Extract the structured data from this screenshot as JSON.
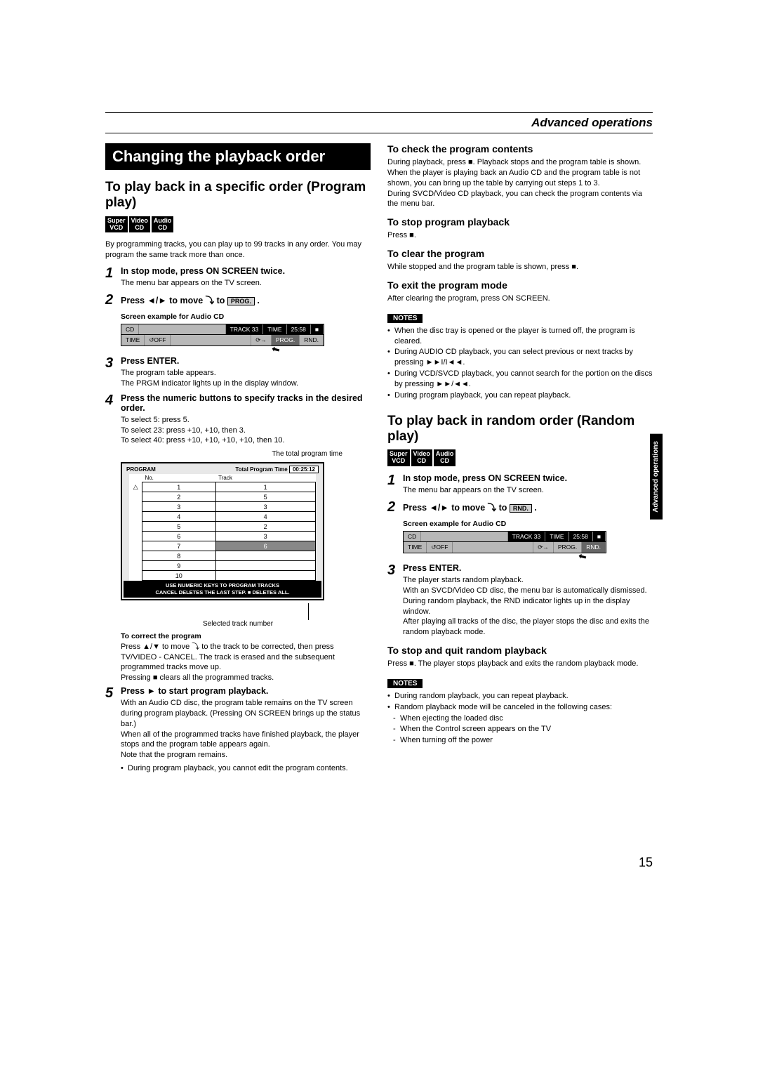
{
  "pageNumber": "15",
  "sectionCategory": "Advanced operations",
  "sideTab": "Advanced operations",
  "leftCol": {
    "mainTitle": "Changing the playback order",
    "subHeading": "To play back in a specific order (Program play)",
    "icons": [
      "Super VCD",
      "Video CD",
      "Audio CD"
    ],
    "intro": "By programming tracks, you can play up to 99 tracks in any order. You may program the same track more than once.",
    "step1": {
      "num": "1",
      "title": "In stop mode, press ON SCREEN twice.",
      "body": "The menu bar appears on the TV screen."
    },
    "step2": {
      "num": "2",
      "titlePrefix": "Press ◄/► to move",
      "titleSuffix": " to ",
      "btn": "PROG.",
      "screenLabel": "Screen example for Audio CD"
    },
    "menuBar1": {
      "row1": [
        "CD",
        "TRACK 33",
        "TIME",
        "25:58",
        "■"
      ],
      "row2": [
        "TIME",
        "↺OFF",
        "⟳→",
        "PROG.",
        "RND."
      ]
    },
    "step3": {
      "num": "3",
      "title": "Press ENTER.",
      "body": "The program table appears.\nThe PRGM indicator lights up in the display window."
    },
    "step4": {
      "num": "4",
      "title": "Press the numeric buttons to specify tracks in the desired order.",
      "body": "To select 5: press 5.\nTo select 23: press +10, +10, then 3.\nTo select 40: press +10, +10, +10, +10, then 10."
    },
    "captionTotal": "The total program time",
    "programTable": {
      "header": "PROGRAM",
      "timeLabel": "Total Program Time",
      "timeValue": "00:25:12",
      "colNo": "No.",
      "colTrack": "Track",
      "rows": [
        [
          "△",
          "1",
          "1"
        ],
        [
          "",
          "2",
          "5"
        ],
        [
          "",
          "3",
          "3"
        ],
        [
          "",
          "4",
          "4"
        ],
        [
          "",
          "5",
          "2"
        ],
        [
          "",
          "6",
          "3"
        ],
        [
          "",
          "7",
          "6"
        ],
        [
          "",
          "8",
          ""
        ],
        [
          "",
          "9",
          ""
        ],
        [
          "",
          "10",
          ""
        ]
      ],
      "footer1": "USE NUMERIC KEYS TO PROGRAM TRACKS",
      "footer2": "CANCEL DELETES THE LAST STEP. ■ DELETES ALL."
    },
    "captionSelected": "Selected track number",
    "correctHdr": "To correct the program",
    "correctBody": "Press ▲/▼ to move ⤵ to the track to be corrected, then press TV/VIDEO - CANCEL. The track is erased and the subsequent programmed tracks move up.\nPressing ■ clears all the programmed tracks.",
    "step5": {
      "num": "5",
      "title": "Press ► to start program playback.",
      "body": "With an Audio CD disc, the program table remains on the TV screen during program playback. (Pressing ON SCREEN brings up the status bar.)\nWhen all of the programmed tracks have finished playback, the player stops and the program table appears again.\nNote that the program remains.",
      "bullet": "During program playback, you cannot edit the program contents."
    }
  },
  "rightCol": {
    "sec1": {
      "title": "To check the program contents",
      "body": "During playback, press ■. Playback stops and the program table is shown.\nWhen the player is playing back an Audio CD and the program table is not shown, you can bring up the table by carrying out steps 1 to 3.\nDuring SVCD/Video CD playback, you can check the program contents via the menu bar."
    },
    "sec2": {
      "title": "To stop program playback",
      "body": "Press ■."
    },
    "sec3": {
      "title": "To clear the program",
      "body": "While stopped and the program table is shown, press ■."
    },
    "sec4": {
      "title": "To exit the program mode",
      "body": "After clearing the program, press ON SCREEN."
    },
    "notes1": {
      "label": "NOTES",
      "items": [
        "When the disc tray is opened or the player is turned off, the program is cleared.",
        "During AUDIO CD playback, you can select previous or next tracks by pressing ►►I/I◄◄.",
        "During VCD/SVCD playback, you cannot search for the portion on the discs by pressing ►►/◄◄.",
        "During program playback, you can repeat playback."
      ]
    },
    "random": {
      "heading": "To play back in random order (Random play)",
      "icons": [
        "Super VCD",
        "Video CD",
        "Audio CD"
      ],
      "step1": {
        "num": "1",
        "title": "In stop mode, press ON SCREEN twice.",
        "body": "The menu bar appears on the TV screen."
      },
      "step2": {
        "num": "2",
        "titlePrefix": "Press ◄/► to move",
        "titleSuffix": " to ",
        "btn": "RND.",
        "screenLabel": "Screen example for Audio CD"
      },
      "step3": {
        "num": "3",
        "title": "Press ENTER.",
        "body": "The player starts random playback.\nWith an SVCD/Video CD disc, the menu bar is automatically dismissed.\nDuring random playback, the RND indicator lights up in the display window.\nAfter playing all tracks of the disc, the player stops the disc and exits the random playback mode."
      },
      "stopQuit": {
        "title": "To stop and quit random playback",
        "body": "Press ■. The player stops playback and exits the random playback mode."
      },
      "notes": {
        "label": "NOTES",
        "items": [
          "During random playback, you can repeat playback.",
          "Random playback mode will be canceled in the following cases:",
          "When ejecting the loaded disc",
          "When the Control screen appears on the TV",
          "When turning off the power"
        ]
      }
    }
  }
}
